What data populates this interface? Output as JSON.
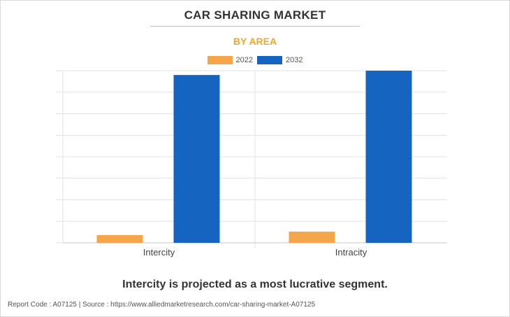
{
  "colors": {
    "series_2022": "#F5A54A",
    "series_2032": "#1565C0",
    "subtitle": "#F5A623",
    "grid": "#e3e3e3",
    "axis": "#c8c8c8"
  },
  "chart_data": {
    "type": "bar",
    "title": "CAR SHARING MARKET",
    "subtitle": "BY AREA",
    "categories": [
      "Intercity",
      "Intracity"
    ],
    "series": [
      {
        "name": "2022",
        "values": [
          4.5,
          6.5
        ]
      },
      {
        "name": "2032",
        "values": [
          97.5,
          100
        ]
      }
    ],
    "xlabel": "",
    "ylabel": "",
    "ylim": [
      0,
      100
    ],
    "grid": true,
    "legend": "top-center"
  },
  "caption": "Intercity is projected as a most lucrative segment.",
  "footer": "Report Code : A07125  |  Source : https://www.alliedmarketresearch.com/car-sharing-market-A07125"
}
